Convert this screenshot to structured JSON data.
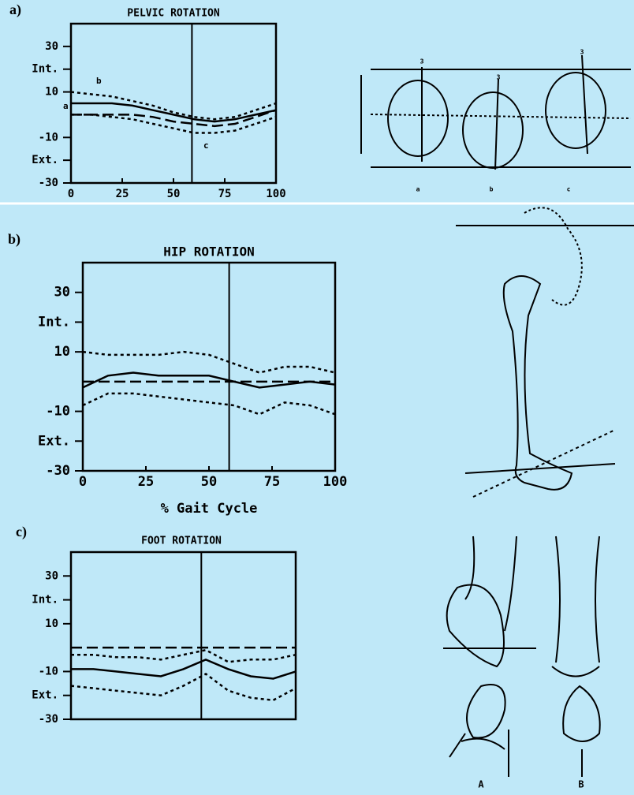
{
  "chart_data": [
    {
      "type": "line",
      "panel": "a)",
      "title": "PELVIC ROTATION",
      "x": [
        0,
        10,
        20,
        30,
        40,
        50,
        60,
        70,
        80,
        90,
        100
      ],
      "xlim": [
        0,
        100
      ],
      "xticks": [
        0,
        25,
        50,
        75,
        100
      ],
      "ylim": [
        -30,
        40
      ],
      "yticks": [
        -30,
        {
          "value": -20,
          "label": "Ext."
        },
        -10,
        10,
        {
          "value": 20,
          "label": "Int."
        },
        30
      ],
      "vline": 59,
      "series": [
        {
          "color": "#000000",
          "style": "dotted",
          "values": [
            10,
            9,
            8,
            6,
            4,
            1,
            -1,
            -2,
            -1,
            2,
            5
          ]
        },
        {
          "color": "#000000",
          "style": "solid",
          "values": [
            5,
            5,
            5,
            4,
            2,
            0,
            -2,
            -3,
            -2,
            0,
            2
          ]
        },
        {
          "color": "#000000",
          "style": "dashed",
          "values": [
            0,
            0,
            0,
            0,
            -1,
            -3,
            -4,
            -5,
            -4,
            -1,
            2
          ]
        },
        {
          "color": "#000000",
          "style": "dotted",
          "values": [
            0,
            0,
            -1,
            -2,
            -4,
            -6,
            -8,
            -8,
            -7,
            -4,
            -1
          ]
        }
      ],
      "annotations": [
        "b",
        "a",
        "c"
      ],
      "illustration_labels": [
        "3",
        "3",
        "3",
        "a",
        "b",
        "c"
      ]
    },
    {
      "type": "line",
      "panel": "b)",
      "title": "HIP ROTATION",
      "xlabel": "% Gait Cycle",
      "x": [
        0,
        10,
        20,
        30,
        40,
        50,
        60,
        70,
        80,
        90,
        100
      ],
      "xlim": [
        0,
        100
      ],
      "xticks": [
        0,
        25,
        50,
        75,
        100
      ],
      "ylim": [
        -30,
        40
      ],
      "yticks": [
        -30,
        {
          "value": -20,
          "label": "Ext."
        },
        -10,
        10,
        {
          "value": 20,
          "label": "Int."
        },
        30
      ],
      "vline": 58,
      "series": [
        {
          "color": "#000000",
          "style": "dotted",
          "values": [
            10,
            9,
            9,
            9,
            10,
            9,
            6,
            3,
            5,
            5,
            3
          ]
        },
        {
          "color": "#000000",
          "style": "solid",
          "values": [
            -2,
            2,
            3,
            2,
            2,
            2,
            0,
            -2,
            -1,
            0,
            -1
          ]
        },
        {
          "color": "#000000",
          "style": "dashed",
          "values": [
            0,
            0,
            0,
            0,
            0,
            0,
            0,
            0,
            0,
            0,
            0
          ]
        },
        {
          "color": "#000000",
          "style": "dotted",
          "values": [
            -8,
            -4,
            -4,
            -5,
            -6,
            -7,
            -8,
            -11,
            -7,
            -8,
            -11
          ]
        }
      ]
    },
    {
      "type": "line",
      "panel": "c)",
      "title": "FOOT ROTATION",
      "x": [
        0,
        10,
        20,
        30,
        40,
        50,
        60,
        70,
        80,
        90,
        100
      ],
      "xlim": [
        0,
        100
      ],
      "ylim": [
        -30,
        40
      ],
      "yticks": [
        -30,
        {
          "value": -20,
          "label": "Ext."
        },
        -10,
        10,
        {
          "value": 20,
          "label": "Int."
        },
        30
      ],
      "vline": 58,
      "series": [
        {
          "color": "#000000",
          "style": "dashed",
          "values": [
            0,
            0,
            0,
            0,
            0,
            0,
            0,
            0,
            0,
            0,
            0
          ]
        },
        {
          "color": "#000000",
          "style": "dotted",
          "values": [
            -3,
            -3,
            -4,
            -4,
            -5,
            -3,
            -1,
            -6,
            -5,
            -5,
            -3
          ]
        },
        {
          "color": "#000000",
          "style": "solid",
          "values": [
            -9,
            -9,
            -10,
            -11,
            -12,
            -9,
            -5,
            -9,
            -12,
            -13,
            -10
          ]
        },
        {
          "color": "#000000",
          "style": "dotted",
          "values": [
            -16,
            -17,
            -18,
            -19,
            -20,
            -16,
            -11,
            -18,
            -21,
            -22,
            -17
          ]
        }
      ],
      "illustration_labels": [
        "A",
        "B"
      ]
    }
  ]
}
